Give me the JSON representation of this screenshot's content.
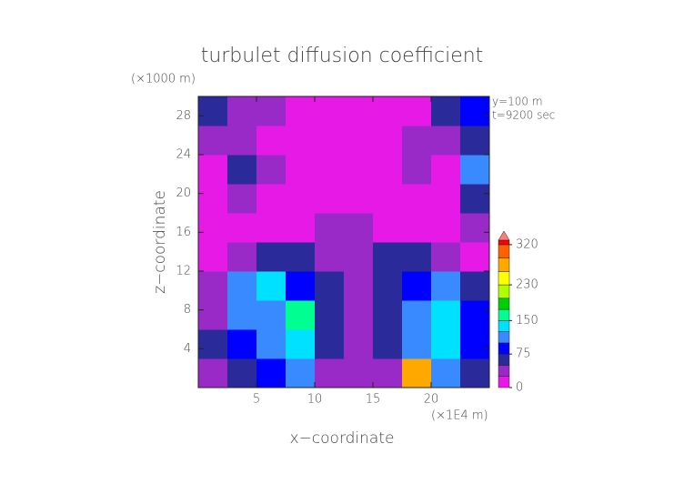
{
  "chart_data": {
    "type": "heatmap",
    "title": "turbulet diffusion coefficient",
    "ylabel_unit": "(×1000 m)",
    "xlabel_unit": "(×1E4 m)",
    "annotations": [
      "y=100 m",
      "t=9200 sec"
    ],
    "xlabel": "x−coordinate",
    "ylabel": "z−coordinate",
    "xlim": [
      0,
      25
    ],
    "xticks": [
      5,
      10,
      15,
      20
    ],
    "ylim": [
      0,
      30
    ],
    "yticks": [
      4,
      8,
      12,
      16,
      20,
      24,
      28
    ],
    "x": [
      1.25,
      3.75,
      6.25,
      8.75,
      11.25,
      13.75,
      16.25,
      18.75,
      21.25,
      23.75
    ],
    "y": [
      1.5,
      4.5,
      7.5,
      10.5,
      13.5,
      16.5,
      19.5,
      22.5,
      25.5,
      28.5
    ],
    "z": [
      [
        40,
        60,
        90,
        100,
        40,
        30,
        40,
        280,
        120,
        70
      ],
      [
        50,
        90,
        110,
        130,
        60,
        40,
        50,
        110,
        130,
        80
      ],
      [
        40,
        120,
        100,
        160,
        60,
        40,
        60,
        100,
        140,
        90
      ],
      [
        30,
        110,
        130,
        90,
        50,
        40,
        50,
        90,
        120,
        60
      ],
      [
        20,
        40,
        70,
        60,
        40,
        30,
        60,
        50,
        30,
        20
      ],
      [
        15,
        20,
        20,
        20,
        25,
        30,
        20,
        20,
        15,
        30
      ],
      [
        15,
        30,
        20,
        15,
        15,
        15,
        15,
        20,
        15,
        60
      ],
      [
        15,
        60,
        30,
        15,
        15,
        15,
        15,
        30,
        15,
        100
      ],
      [
        30,
        40,
        20,
        15,
        15,
        15,
        15,
        25,
        30,
        60
      ],
      [
        60,
        40,
        30,
        20,
        15,
        15,
        15,
        20,
        70,
        80
      ]
    ],
    "colorbar": {
      "clim": [
        0,
        330
      ],
      "ticks": [
        0,
        75,
        150,
        230,
        320
      ],
      "levels": [
        0,
        25,
        50,
        75,
        100,
        125,
        150,
        175,
        200,
        230,
        260,
        290,
        320,
        330
      ],
      "colors": [
        "#e619e6",
        "#9a2ac8",
        "#2a2a9a",
        "#0000ff",
        "#3a8aff",
        "#00e0ff",
        "#00ff90",
        "#00d000",
        "#b0ff00",
        "#ffff00",
        "#ffa800",
        "#ff6000",
        "#ff0000"
      ],
      "extend_color": "#ff7a7a"
    }
  }
}
